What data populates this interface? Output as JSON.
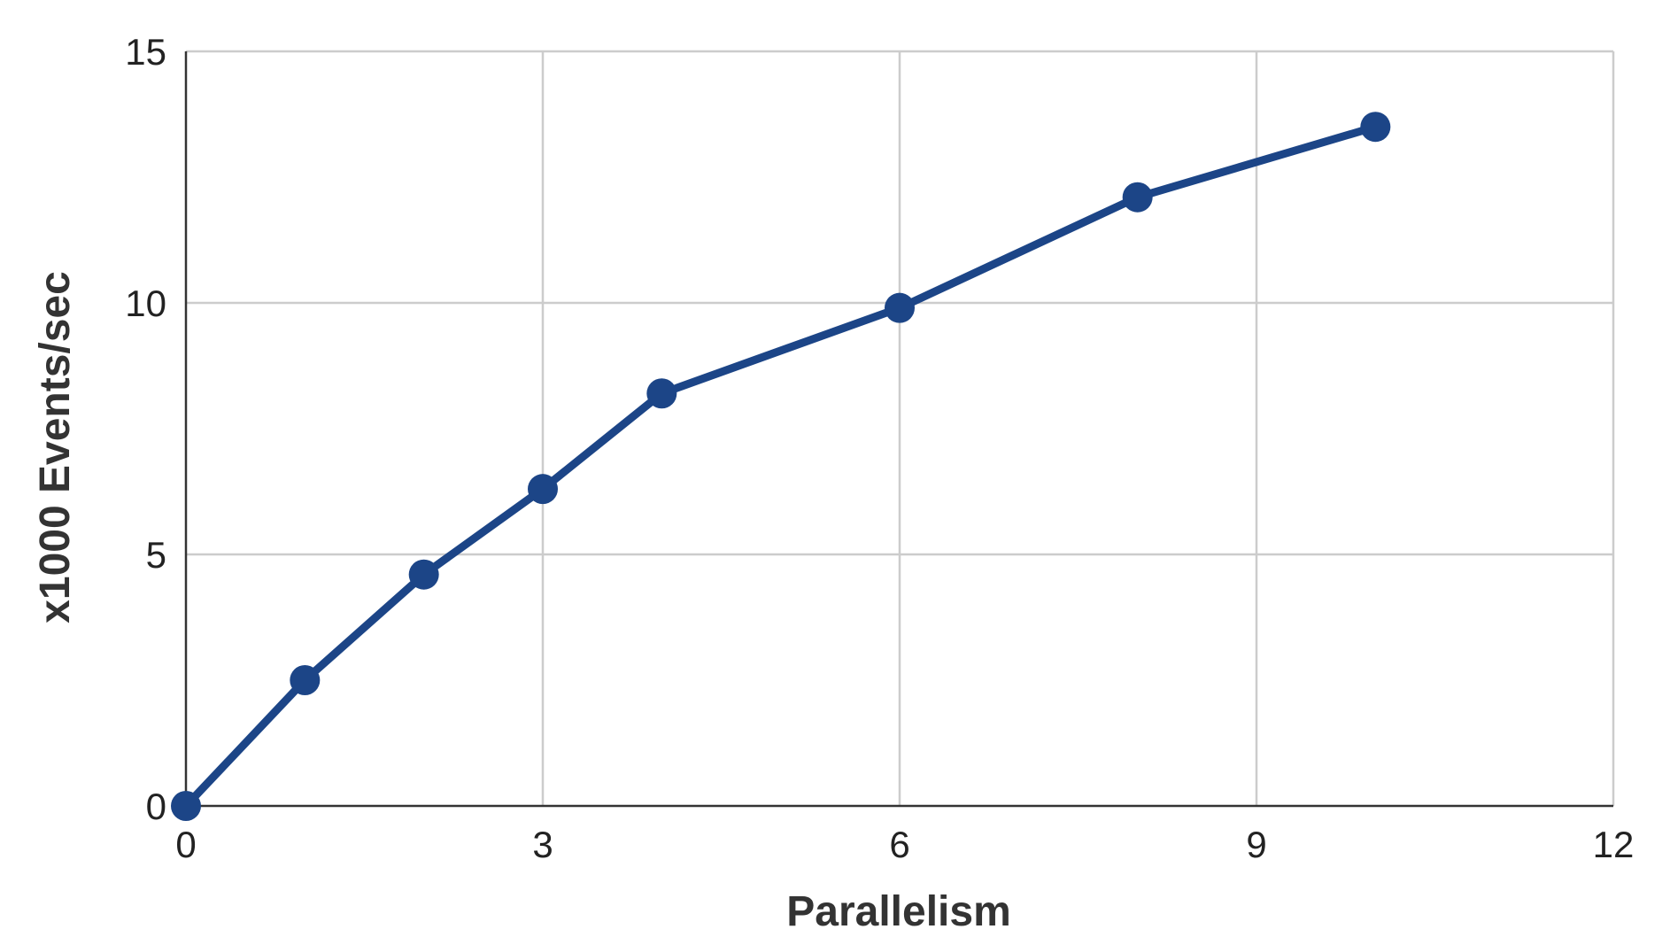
{
  "chart_data": {
    "type": "line",
    "title": "",
    "xlabel": "Parallelism",
    "ylabel": "x1000 Events/sec",
    "xlim": [
      0,
      12
    ],
    "ylim": [
      0,
      15
    ],
    "x_ticks": [
      0,
      3,
      6,
      9,
      12
    ],
    "y_ticks": [
      0,
      5,
      10,
      15
    ],
    "grid": true,
    "legend": "none",
    "colors": {
      "series": "#1c4587",
      "grid": "#cccccc",
      "axis": "#333333"
    },
    "series": [
      {
        "x": [
          0,
          1,
          2,
          3,
          4,
          6,
          8,
          10
        ],
        "y": [
          0,
          2.5,
          4.6,
          6.3,
          8.2,
          9.9,
          12.1,
          13.5
        ]
      }
    ]
  }
}
